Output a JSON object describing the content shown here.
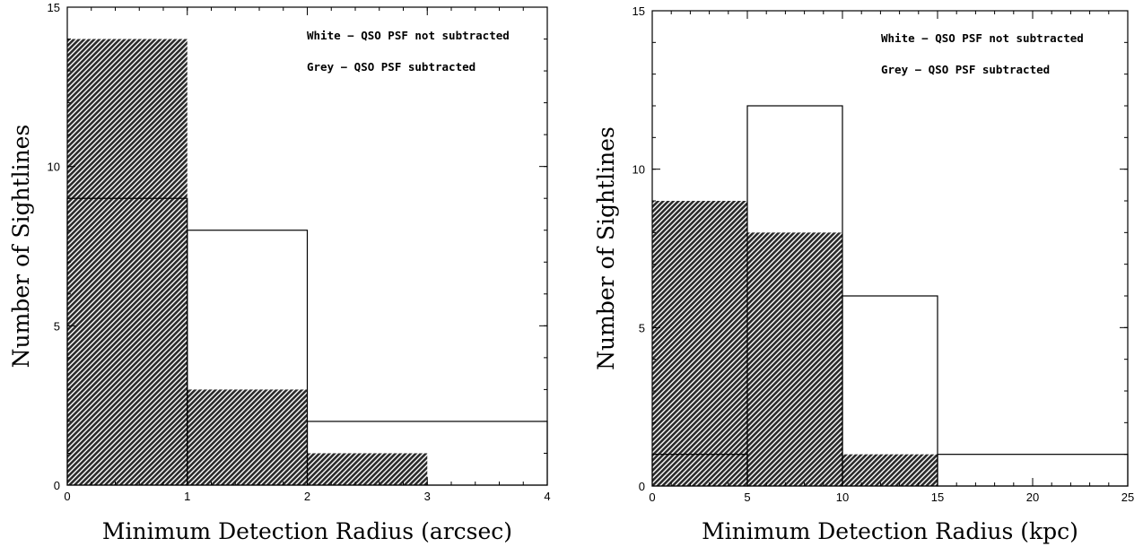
{
  "chart_data": [
    {
      "type": "bar",
      "xlabel": "Minimum Detection Radius (arcsec)",
      "ylabel": "Number of Sightlines",
      "xlim": [
        0,
        4
      ],
      "ylim": [
        0,
        15
      ],
      "x_ticks": [
        0,
        1,
        2,
        3,
        4
      ],
      "y_ticks": [
        0,
        5,
        10,
        15
      ],
      "x_minor_step": 0.2,
      "y_minor_step": 1,
      "grid": false,
      "legend_placement": "top-right",
      "legend": [
        "White − QSO PSF not subtracted",
        "Grey  − QSO PSF subtracted"
      ],
      "series": [
        {
          "style": "white",
          "bins": [
            {
              "x0": 0,
              "x1": 1,
              "value": 9
            },
            {
              "x0": 1,
              "x1": 2,
              "value": 8
            },
            {
              "x0": 2,
              "x1": 4,
              "value": 2
            }
          ]
        },
        {
          "style": "hatched",
          "bins": [
            {
              "x0": 0,
              "x1": 1,
              "value": 14
            },
            {
              "x0": 1,
              "x1": 2,
              "value": 3
            },
            {
              "x0": 2,
              "x1": 3,
              "value": 1
            }
          ]
        }
      ]
    },
    {
      "type": "bar",
      "xlabel": "Minimum Detection Radius (kpc)",
      "ylabel": "Number of Sightlines",
      "xlim": [
        0,
        25
      ],
      "ylim": [
        0,
        15
      ],
      "x_ticks": [
        0,
        5,
        10,
        15,
        20,
        25
      ],
      "y_ticks": [
        0,
        5,
        10,
        15
      ],
      "x_minor_step": 1,
      "y_minor_step": 1,
      "grid": false,
      "legend_placement": "top-right",
      "legend": [
        "White − QSO PSF not subtracted",
        "Grey  − QSO PSF subtracted"
      ],
      "series": [
        {
          "style": "white",
          "bins": [
            {
              "x0": 0,
              "x1": 5,
              "value": 1
            },
            {
              "x0": 5,
              "x1": 10,
              "value": 12
            },
            {
              "x0": 10,
              "x1": 15,
              "value": 6
            },
            {
              "x0": 15,
              "x1": 25,
              "value": 1
            }
          ]
        },
        {
          "style": "hatched",
          "bins": [
            {
              "x0": 0,
              "x1": 5,
              "value": 9
            },
            {
              "x0": 5,
              "x1": 10,
              "value": 8
            },
            {
              "x0": 10,
              "x1": 15,
              "value": 1
            }
          ]
        }
      ]
    }
  ]
}
